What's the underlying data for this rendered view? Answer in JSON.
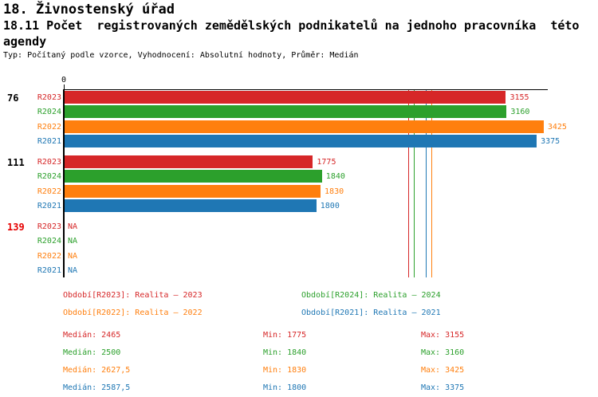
{
  "header": {
    "title1": "18. Živnostenský úřad",
    "title2": "18.11 Počet  registrovaných zemědělských podnikatelů na jednoho pracovníka  této",
    "title3": "agendy",
    "meta": "Typ: Počítaný podle vzorce, Vyhodnocení: Absolutní hodnoty, Průměr: Medián"
  },
  "colors": {
    "R2023": "#d62728",
    "R2024": "#2ca02c",
    "R2022": "#ff7f0e",
    "R2021": "#1f77b4",
    "axis": "#000000",
    "alert": "#e60000"
  },
  "chart_data": {
    "type": "bar",
    "orientation": "horizontal",
    "title": "18.11 Počet registrovaných zemědělských podnikatelů na jednoho pracovníka této agendy",
    "xlabel": "",
    "ylabel": "",
    "xlim": [
      0,
      3460
    ],
    "origin_tick_label": "0",
    "grid": false,
    "na_text": "NA",
    "series_order": [
      "R2023",
      "R2024",
      "R2022",
      "R2021"
    ],
    "groups": [
      {
        "label": "76",
        "label_color": "#000000",
        "values": {
          "R2023": 3155,
          "R2024": 3160,
          "R2022": 3425,
          "R2021": 3375
        }
      },
      {
        "label": "111",
        "label_color": "#000000",
        "values": {
          "R2023": 1775,
          "R2024": 1840,
          "R2022": 1830,
          "R2021": 1800
        }
      },
      {
        "label": "139",
        "label_color": "#e60000",
        "values": {
          "R2023": null,
          "R2024": null,
          "R2022": null,
          "R2021": null
        }
      }
    ],
    "medians": {
      "R2023": 2465,
      "R2024": 2500,
      "R2022": 2627.5,
      "R2021": 2587.5
    }
  },
  "legend": {
    "items": [
      {
        "series": "R2023",
        "text": "Období[R2023]: Realita – 2023"
      },
      {
        "series": "R2024",
        "text": "Období[R2024]: Realita – 2024"
      },
      {
        "series": "R2022",
        "text": "Období[R2022]: Realita – 2022"
      },
      {
        "series": "R2021",
        "text": "Období[R2021]: Realita – 2021"
      }
    ]
  },
  "stats": {
    "rows": [
      {
        "series": "R2023",
        "median": "Medián: 2465",
        "min": "Min: 1775",
        "max": "Max: 3155"
      },
      {
        "series": "R2024",
        "median": "Medián: 2500",
        "min": "Min: 1840",
        "max": "Max: 3160"
      },
      {
        "series": "R2022",
        "median": "Medián: 2627,5",
        "min": "Min: 1830",
        "max": "Max: 3425"
      },
      {
        "series": "R2021",
        "median": "Medián: 2587,5",
        "min": "Min: 1800",
        "max": "Max: 3375"
      }
    ]
  }
}
